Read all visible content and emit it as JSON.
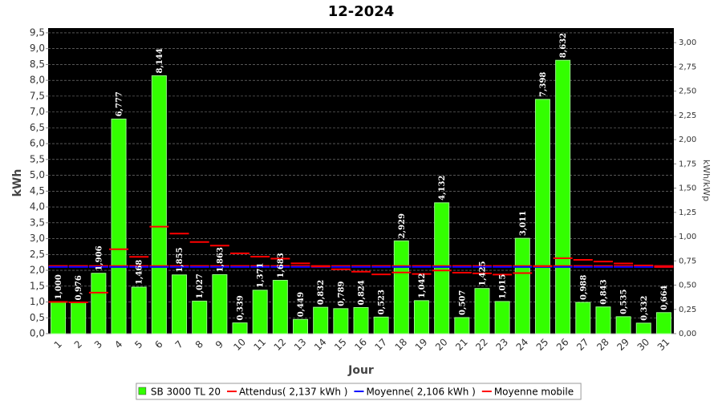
{
  "chart_data": {
    "type": "bar",
    "title": "12-2024",
    "x_label": "Jour",
    "y_label": "kWh",
    "y2_label": "kWh/kWp",
    "categories": [
      "1",
      "2",
      "3",
      "4",
      "5",
      "6",
      "7",
      "8",
      "9",
      "10",
      "11",
      "12",
      "13",
      "14",
      "15",
      "16",
      "17",
      "18",
      "19",
      "20",
      "21",
      "22",
      "23",
      "24",
      "25",
      "26",
      "27",
      "28",
      "29",
      "30",
      "31"
    ],
    "series": [
      {
        "name": "SB 3000 TL 20",
        "kind": "bar",
        "color": "#33ff00",
        "values": [
          1.0,
          0.976,
          1.906,
          6.777,
          1.468,
          8.144,
          1.855,
          1.027,
          1.863,
          0.339,
          1.371,
          1.683,
          0.449,
          0.832,
          0.789,
          0.824,
          0.523,
          2.929,
          1.042,
          4.132,
          0.507,
          1.425,
          1.015,
          3.011,
          7.398,
          8.632,
          0.988,
          0.843,
          0.535,
          0.332,
          0.664
        ],
        "value_labels": [
          "1,000",
          "0,976",
          "1,906",
          "6,777",
          "1,468",
          "8,144",
          "1,855",
          "1,027",
          "1,863",
          "0,339",
          "1,371",
          "1,683",
          "0,449",
          "0,832",
          "0,789",
          "0,824",
          "0,523",
          "2,929",
          "1,042",
          "4,132",
          "0,507",
          "1,425",
          "1,015",
          "3,011",
          "7,398",
          "8,632",
          "0,988",
          "0,843",
          "0,535",
          "0,332",
          "0,664"
        ]
      },
      {
        "name": "Attendus( 2,137 kWh )",
        "kind": "dash",
        "color": "#ff0000",
        "values": [
          2.137,
          2.137,
          2.137,
          2.137,
          2.137,
          2.137,
          2.137,
          2.137,
          2.137,
          2.137,
          2.137,
          2.137,
          2.137,
          2.137,
          2.137,
          2.137,
          2.137,
          2.137,
          2.137,
          2.137,
          2.137,
          2.137,
          2.137,
          2.137,
          2.137,
          2.137,
          2.137,
          2.137,
          2.137,
          2.137,
          2.137
        ]
      },
      {
        "name": "Moyenne( 2,106 kWh )",
        "kind": "dash",
        "color": "#0000ff",
        "values": [
          2.106,
          2.106,
          2.106,
          2.106,
          2.106,
          2.106,
          2.106,
          2.106,
          2.106,
          2.106,
          2.106,
          2.106,
          2.106,
          2.106,
          2.106,
          2.106,
          2.106,
          2.106,
          2.106,
          2.106,
          2.106,
          2.106,
          2.106,
          2.106,
          2.106,
          2.106,
          2.106,
          2.106,
          2.106,
          2.106,
          2.106
        ]
      },
      {
        "name": "Moyenne mobile",
        "kind": "dash",
        "color": "#ff0000",
        "values": [
          1.0,
          0.988,
          1.294,
          2.665,
          2.425,
          3.379,
          3.161,
          2.894,
          2.78,
          2.536,
          2.43,
          2.367,
          2.22,
          2.121,
          2.032,
          1.956,
          1.872,
          1.931,
          1.884,
          1.996,
          1.925,
          1.903,
          1.864,
          1.912,
          2.131,
          2.381,
          2.33,
          2.277,
          2.217,
          2.154,
          2.106
        ]
      }
    ],
    "ylim": [
      0,
      9.65
    ],
    "yticks": [
      {
        "value": 0,
        "label": "0,0"
      },
      {
        "value": 0.5,
        "label": "0,5"
      },
      {
        "value": 1,
        "label": "1,0"
      },
      {
        "value": 1.5,
        "label": "1,5"
      },
      {
        "value": 2,
        "label": "2,0"
      },
      {
        "value": 2.5,
        "label": "2,5"
      },
      {
        "value": 3,
        "label": "3,0"
      },
      {
        "value": 3.5,
        "label": "3,5"
      },
      {
        "value": 4,
        "label": "4,0"
      },
      {
        "value": 4.5,
        "label": "4,5"
      },
      {
        "value": 5,
        "label": "5,0"
      },
      {
        "value": 5.5,
        "label": "5,5"
      },
      {
        "value": 6,
        "label": "6,0"
      },
      {
        "value": 6.5,
        "label": "6,5"
      },
      {
        "value": 7,
        "label": "7,0"
      },
      {
        "value": 7.5,
        "label": "7,5"
      },
      {
        "value": 8,
        "label": "8,0"
      },
      {
        "value": 8.5,
        "label": "8,5"
      },
      {
        "value": 9,
        "label": "9,0"
      },
      {
        "value": 9.5,
        "label": "9,5"
      }
    ],
    "y2lim": [
      0,
      3.15
    ],
    "y2ticks": [
      {
        "value": 0,
        "label": "0,00"
      },
      {
        "value": 0.25,
        "label": "0,25"
      },
      {
        "value": 0.5,
        "label": "0,50"
      },
      {
        "value": 0.75,
        "label": "0,75"
      },
      {
        "value": 1,
        "label": "1,00"
      },
      {
        "value": 1.25,
        "label": "1,25"
      },
      {
        "value": 1.5,
        "label": "1,50"
      },
      {
        "value": 1.75,
        "label": "1,75"
      },
      {
        "value": 2,
        "label": "2,00"
      },
      {
        "value": 2.25,
        "label": "2,25"
      },
      {
        "value": 2.5,
        "label": "2,50"
      },
      {
        "value": 2.75,
        "label": "2,75"
      },
      {
        "value": 3,
        "label": "3,00"
      }
    ],
    "grid": true,
    "legend": "bottom"
  }
}
